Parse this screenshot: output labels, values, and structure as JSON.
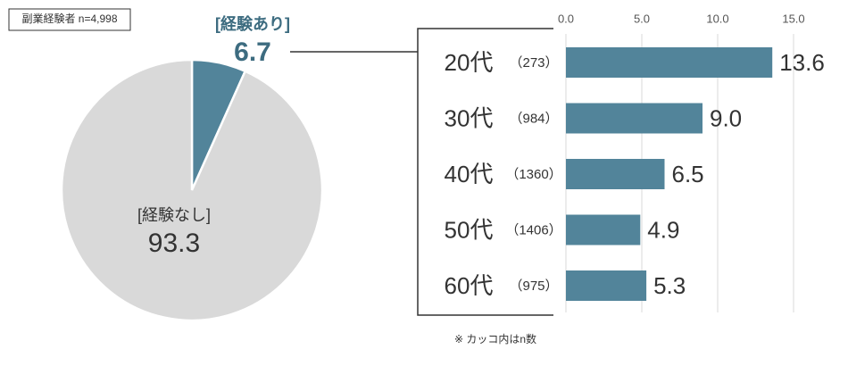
{
  "chart_data": [
    {
      "type": "pie",
      "title": "副業経験者 n=4,998",
      "labels": [
        "[経験あり]",
        "[経験なし]"
      ],
      "values": [
        6.7,
        93.3
      ],
      "colors": [
        "#52849a",
        "#d9d9d9"
      ]
    },
    {
      "type": "barh",
      "categories": [
        "20代",
        "30代",
        "40代",
        "50代",
        "60代"
      ],
      "n_labels": [
        "（273）",
        "（984）",
        "（1360）",
        "（1406）",
        "（975）"
      ],
      "values": [
        13.6,
        9.0,
        6.5,
        4.9,
        5.3
      ],
      "value_labels": [
        "13.6",
        "9.0",
        "6.5",
        "4.9",
        "5.3"
      ],
      "color": "#52849a",
      "xlim": [
        0,
        15
      ],
      "xticks": [
        {
          "value": 0,
          "label": "0.0"
        },
        {
          "value": 5,
          "label": "5.0"
        },
        {
          "value": 10,
          "label": "10.0"
        },
        {
          "value": 15,
          "label": "15.0"
        }
      ],
      "grid": true,
      "note": "※ カッコ内はn数"
    }
  ]
}
